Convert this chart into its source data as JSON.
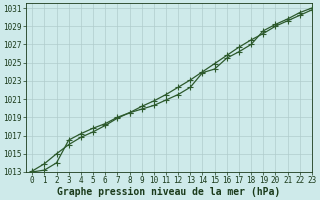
{
  "title": "Graphe pression niveau de la mer (hPa)",
  "background_color": "#ceeaea",
  "plot_bg_color": "#ceeaea",
  "line_color": "#2d5a2d",
  "grid_color": "#b0cccc",
  "text_color": "#1a3a1a",
  "xlim": [
    -0.5,
    23
  ],
  "ylim": [
    1013,
    1031.5
  ],
  "xticks": [
    0,
    1,
    2,
    3,
    4,
    5,
    6,
    7,
    8,
    9,
    10,
    11,
    12,
    13,
    14,
    15,
    16,
    17,
    18,
    19,
    20,
    21,
    22,
    23
  ],
  "yticks": [
    1013,
    1015,
    1017,
    1019,
    1021,
    1023,
    1025,
    1027,
    1029,
    1031
  ],
  "line1_x": [
    0,
    1,
    2,
    3,
    4,
    5,
    6,
    7,
    8,
    9,
    10,
    11,
    12,
    13,
    14,
    15,
    16,
    17,
    18,
    19,
    20,
    21,
    22,
    23
  ],
  "line1_y": [
    1013.1,
    1013.9,
    1015.0,
    1016.0,
    1016.8,
    1017.4,
    1018.1,
    1018.9,
    1019.5,
    1019.9,
    1020.3,
    1020.9,
    1021.5,
    1022.3,
    1023.9,
    1024.3,
    1025.5,
    1026.2,
    1027.0,
    1028.5,
    1029.2,
    1029.8,
    1030.5,
    1031.0
  ],
  "line2_x": [
    0,
    1,
    2,
    3,
    4,
    5,
    6,
    7,
    8,
    9,
    10,
    11,
    12,
    13,
    14,
    15,
    16,
    17,
    18,
    19,
    20,
    21,
    22,
    23
  ],
  "line2_y": [
    1013.0,
    1013.2,
    1014.0,
    1016.5,
    1017.2,
    1017.8,
    1018.3,
    1019.0,
    1019.5,
    1020.2,
    1020.8,
    1021.5,
    1022.3,
    1023.1,
    1024.0,
    1024.9,
    1025.8,
    1026.7,
    1027.5,
    1028.2,
    1029.0,
    1029.6,
    1030.2,
    1030.8
  ],
  "marker": "+",
  "marker_size": 4,
  "linewidth": 0.9,
  "title_fontsize": 7,
  "tick_fontsize": 5.5
}
